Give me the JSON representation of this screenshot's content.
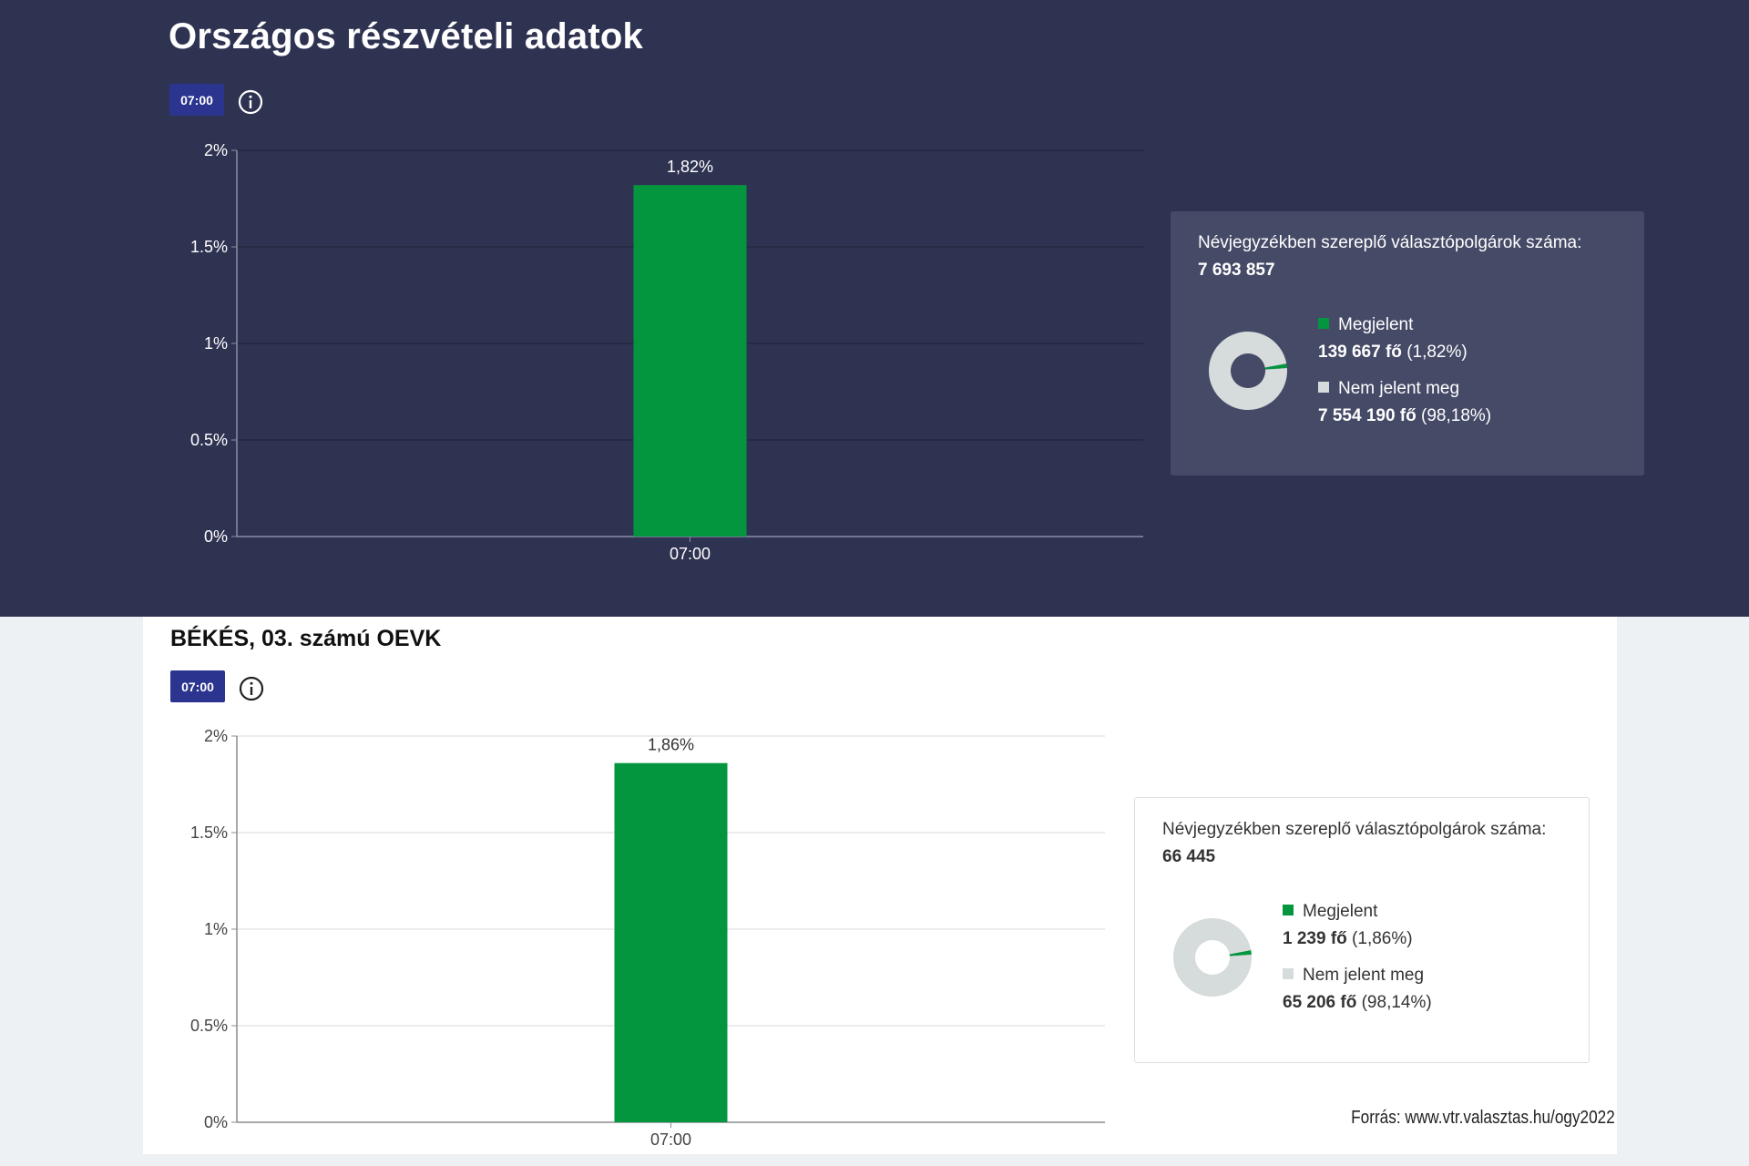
{
  "national": {
    "title": "Országos részvételi adatok",
    "time_badge": "07:00",
    "legend": {
      "heading": "Névjegyzékben szereplő választópolgárok száma:",
      "total": "7 693 857",
      "appeared_label": "Megjelent",
      "appeared_count": "139 667 fő",
      "appeared_pct": "(1,82%)",
      "absent_label": "Nem jelent meg",
      "absent_count": "7 554 190 fő",
      "absent_pct": "(98,18%)"
    }
  },
  "district": {
    "title": "BÉKÉS, 03. számú OEVK",
    "time_badge": "07:00",
    "legend": {
      "heading": "Névjegyzékben szereplő választópolgárok száma:",
      "total": "66 445",
      "appeared_label": "Megjelent",
      "appeared_count": "1 239 fő",
      "appeared_pct": "(1,86%)",
      "absent_label": "Nem jelent meg",
      "absent_count": "65 206 fő",
      "absent_pct": "(98,14%)"
    }
  },
  "source": "Forrás: www.vtr.valasztas.hu/ogy2022",
  "colors": {
    "appeared": "#03963f",
    "absent_dark": "#d6dbdb",
    "absent_light": "#d6dbdb",
    "badge": "#2b3590"
  },
  "icons": {
    "info": "info-circle-icon"
  },
  "chart_data": [
    {
      "type": "bar",
      "categories": [
        "07:00"
      ],
      "values": [
        1.82
      ],
      "data_labels": [
        "1,82%"
      ],
      "ylim": [
        0,
        2
      ],
      "yticks": [
        0,
        0.5,
        1,
        1.5,
        2
      ],
      "ytick_labels": [
        "0%",
        "0.5%",
        "1%",
        "1.5%",
        "2%"
      ],
      "grid": true
    },
    {
      "type": "bar",
      "categories": [
        "07:00"
      ],
      "values": [
        1.86
      ],
      "data_labels": [
        "1,86%"
      ],
      "ylim": [
        0,
        2
      ],
      "yticks": [
        0,
        0.5,
        1,
        1.5,
        2
      ],
      "ytick_labels": [
        "0%",
        "0.5%",
        "1%",
        "1.5%",
        "2%"
      ],
      "grid": true
    },
    {
      "type": "pie",
      "categories": [
        "Megjelent",
        "Nem jelent meg"
      ],
      "values": [
        1.82,
        98.18
      ]
    },
    {
      "type": "pie",
      "categories": [
        "Megjelent",
        "Nem jelent meg"
      ],
      "values": [
        1.86,
        98.14
      ]
    }
  ]
}
